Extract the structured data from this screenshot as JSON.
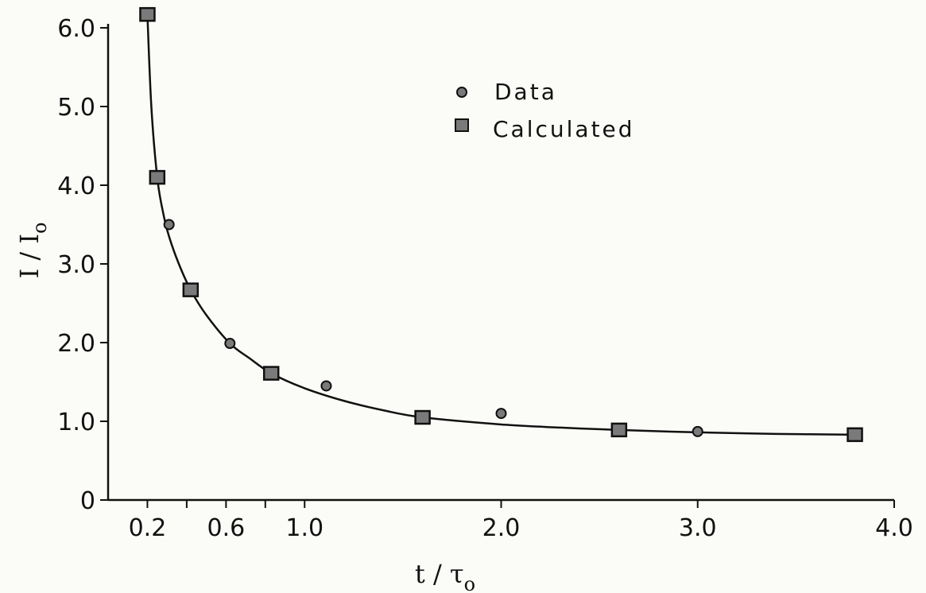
{
  "chart_data": {
    "type": "scatter",
    "xlabel": "t / τ",
    "xlabel_sub": "o",
    "ylabel": "I / I",
    "ylabel_sub": "o",
    "x_ticks": [
      {
        "value": 0.2,
        "label": "0.2"
      },
      {
        "value": 0.6,
        "label": "0.6"
      },
      {
        "value": 1.0,
        "label": "1.0"
      },
      {
        "value": 2.0,
        "label": "2.0"
      },
      {
        "value": 3.0,
        "label": "3.0"
      },
      {
        "value": 4.0,
        "label": "4.0"
      }
    ],
    "x_minor_ticks": [
      0.4,
      0.8
    ],
    "y_ticks": [
      {
        "value": 0,
        "label": "0"
      },
      {
        "value": 1.0,
        "label": "1.0"
      },
      {
        "value": 2.0,
        "label": "2.0"
      },
      {
        "value": 3.0,
        "label": "3.0"
      },
      {
        "value": 4.0,
        "label": "4.0"
      },
      {
        "value": 5.0,
        "label": "5.0"
      },
      {
        "value": 6.0,
        "label": "6.0"
      }
    ],
    "xlim": [
      0,
      4.0
    ],
    "ylim": [
      0,
      6.0
    ],
    "grid": false,
    "legend_position": "top-center",
    "series": [
      {
        "name": "Data",
        "marker": "circle",
        "points": [
          {
            "x": 0.2,
            "y": 6.17
          },
          {
            "x": 0.25,
            "y": 4.1
          },
          {
            "x": 0.31,
            "y": 3.5
          },
          {
            "x": 0.62,
            "y": 1.99
          },
          {
            "x": 1.11,
            "y": 1.45
          },
          {
            "x": 2.0,
            "y": 1.1
          },
          {
            "x": 3.0,
            "y": 0.87
          }
        ]
      },
      {
        "name": "Calculated",
        "marker": "square",
        "points": [
          {
            "x": 0.2,
            "y": 6.17
          },
          {
            "x": 0.25,
            "y": 4.1
          },
          {
            "x": 0.42,
            "y": 2.67
          },
          {
            "x": 0.83,
            "y": 1.61
          },
          {
            "x": 1.6,
            "y": 1.05
          },
          {
            "x": 2.6,
            "y": 0.89
          },
          {
            "x": 3.8,
            "y": 0.83
          }
        ]
      }
    ],
    "fit_curve": [
      {
        "x": 0.2,
        "y": 6.17
      },
      {
        "x": 0.22,
        "y": 5.0
      },
      {
        "x": 0.25,
        "y": 4.1
      },
      {
        "x": 0.28,
        "y": 3.65
      },
      {
        "x": 0.31,
        "y": 3.35
      },
      {
        "x": 0.36,
        "y": 3.0
      },
      {
        "x": 0.42,
        "y": 2.67
      },
      {
        "x": 0.5,
        "y": 2.35
      },
      {
        "x": 0.62,
        "y": 1.99
      },
      {
        "x": 0.72,
        "y": 1.8
      },
      {
        "x": 0.83,
        "y": 1.61
      },
      {
        "x": 1.0,
        "y": 1.42
      },
      {
        "x": 1.2,
        "y": 1.26
      },
      {
        "x": 1.4,
        "y": 1.14
      },
      {
        "x": 1.6,
        "y": 1.05
      },
      {
        "x": 2.0,
        "y": 0.96
      },
      {
        "x": 2.3,
        "y": 0.92
      },
      {
        "x": 2.6,
        "y": 0.89
      },
      {
        "x": 3.0,
        "y": 0.86
      },
      {
        "x": 3.4,
        "y": 0.84
      },
      {
        "x": 3.8,
        "y": 0.83
      }
    ],
    "colors": {
      "background": "#fbfbf8",
      "ink": "#111111",
      "marker_fill": "#7a7a7a"
    }
  }
}
